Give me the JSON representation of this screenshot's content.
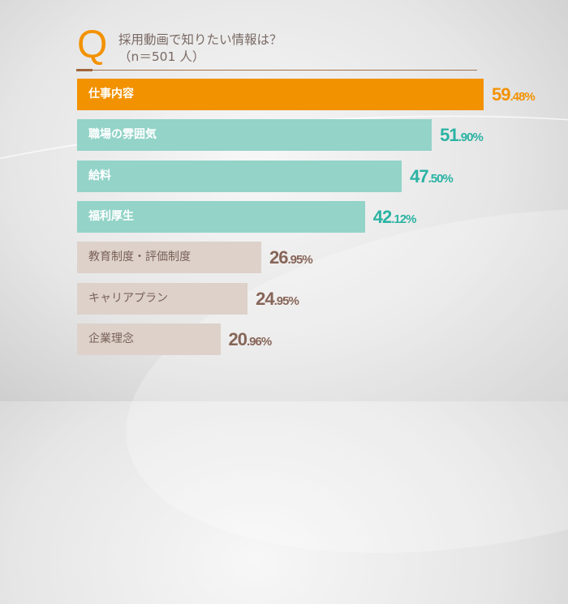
{
  "header": {
    "q_letter": "Q",
    "question": "採用動画で知りたい情報は？",
    "sample": "（n＝501 人）"
  },
  "colors": {
    "highlight": "#f39200",
    "teal_bar": "#93d3c8",
    "teal_text": "#2bb3a3",
    "beige_bar": "#ddd1ca",
    "brown_text": "#876558"
  },
  "chart_data": {
    "type": "bar",
    "orientation": "horizontal",
    "title": "採用動画で知りたい情報は？",
    "subtitle": "（n＝501 人）",
    "categories": [
      "仕事内容",
      "職場の雰囲気",
      "給料",
      "福利厚生",
      "教育制度・評価制度",
      "キャリアプラン",
      "企業理念"
    ],
    "values": [
      59.48,
      51.9,
      47.5,
      42.12,
      26.95,
      24.95,
      20.96
    ],
    "value_labels": [
      "59.48%",
      "51.90%",
      "47.50%",
      "42.12%",
      "26.95%",
      "24.95%",
      "20.96%"
    ],
    "groups": [
      "highlight",
      "teal",
      "teal",
      "teal",
      "beige",
      "beige",
      "beige"
    ],
    "unit": "%",
    "grid": false,
    "legend": "none"
  }
}
